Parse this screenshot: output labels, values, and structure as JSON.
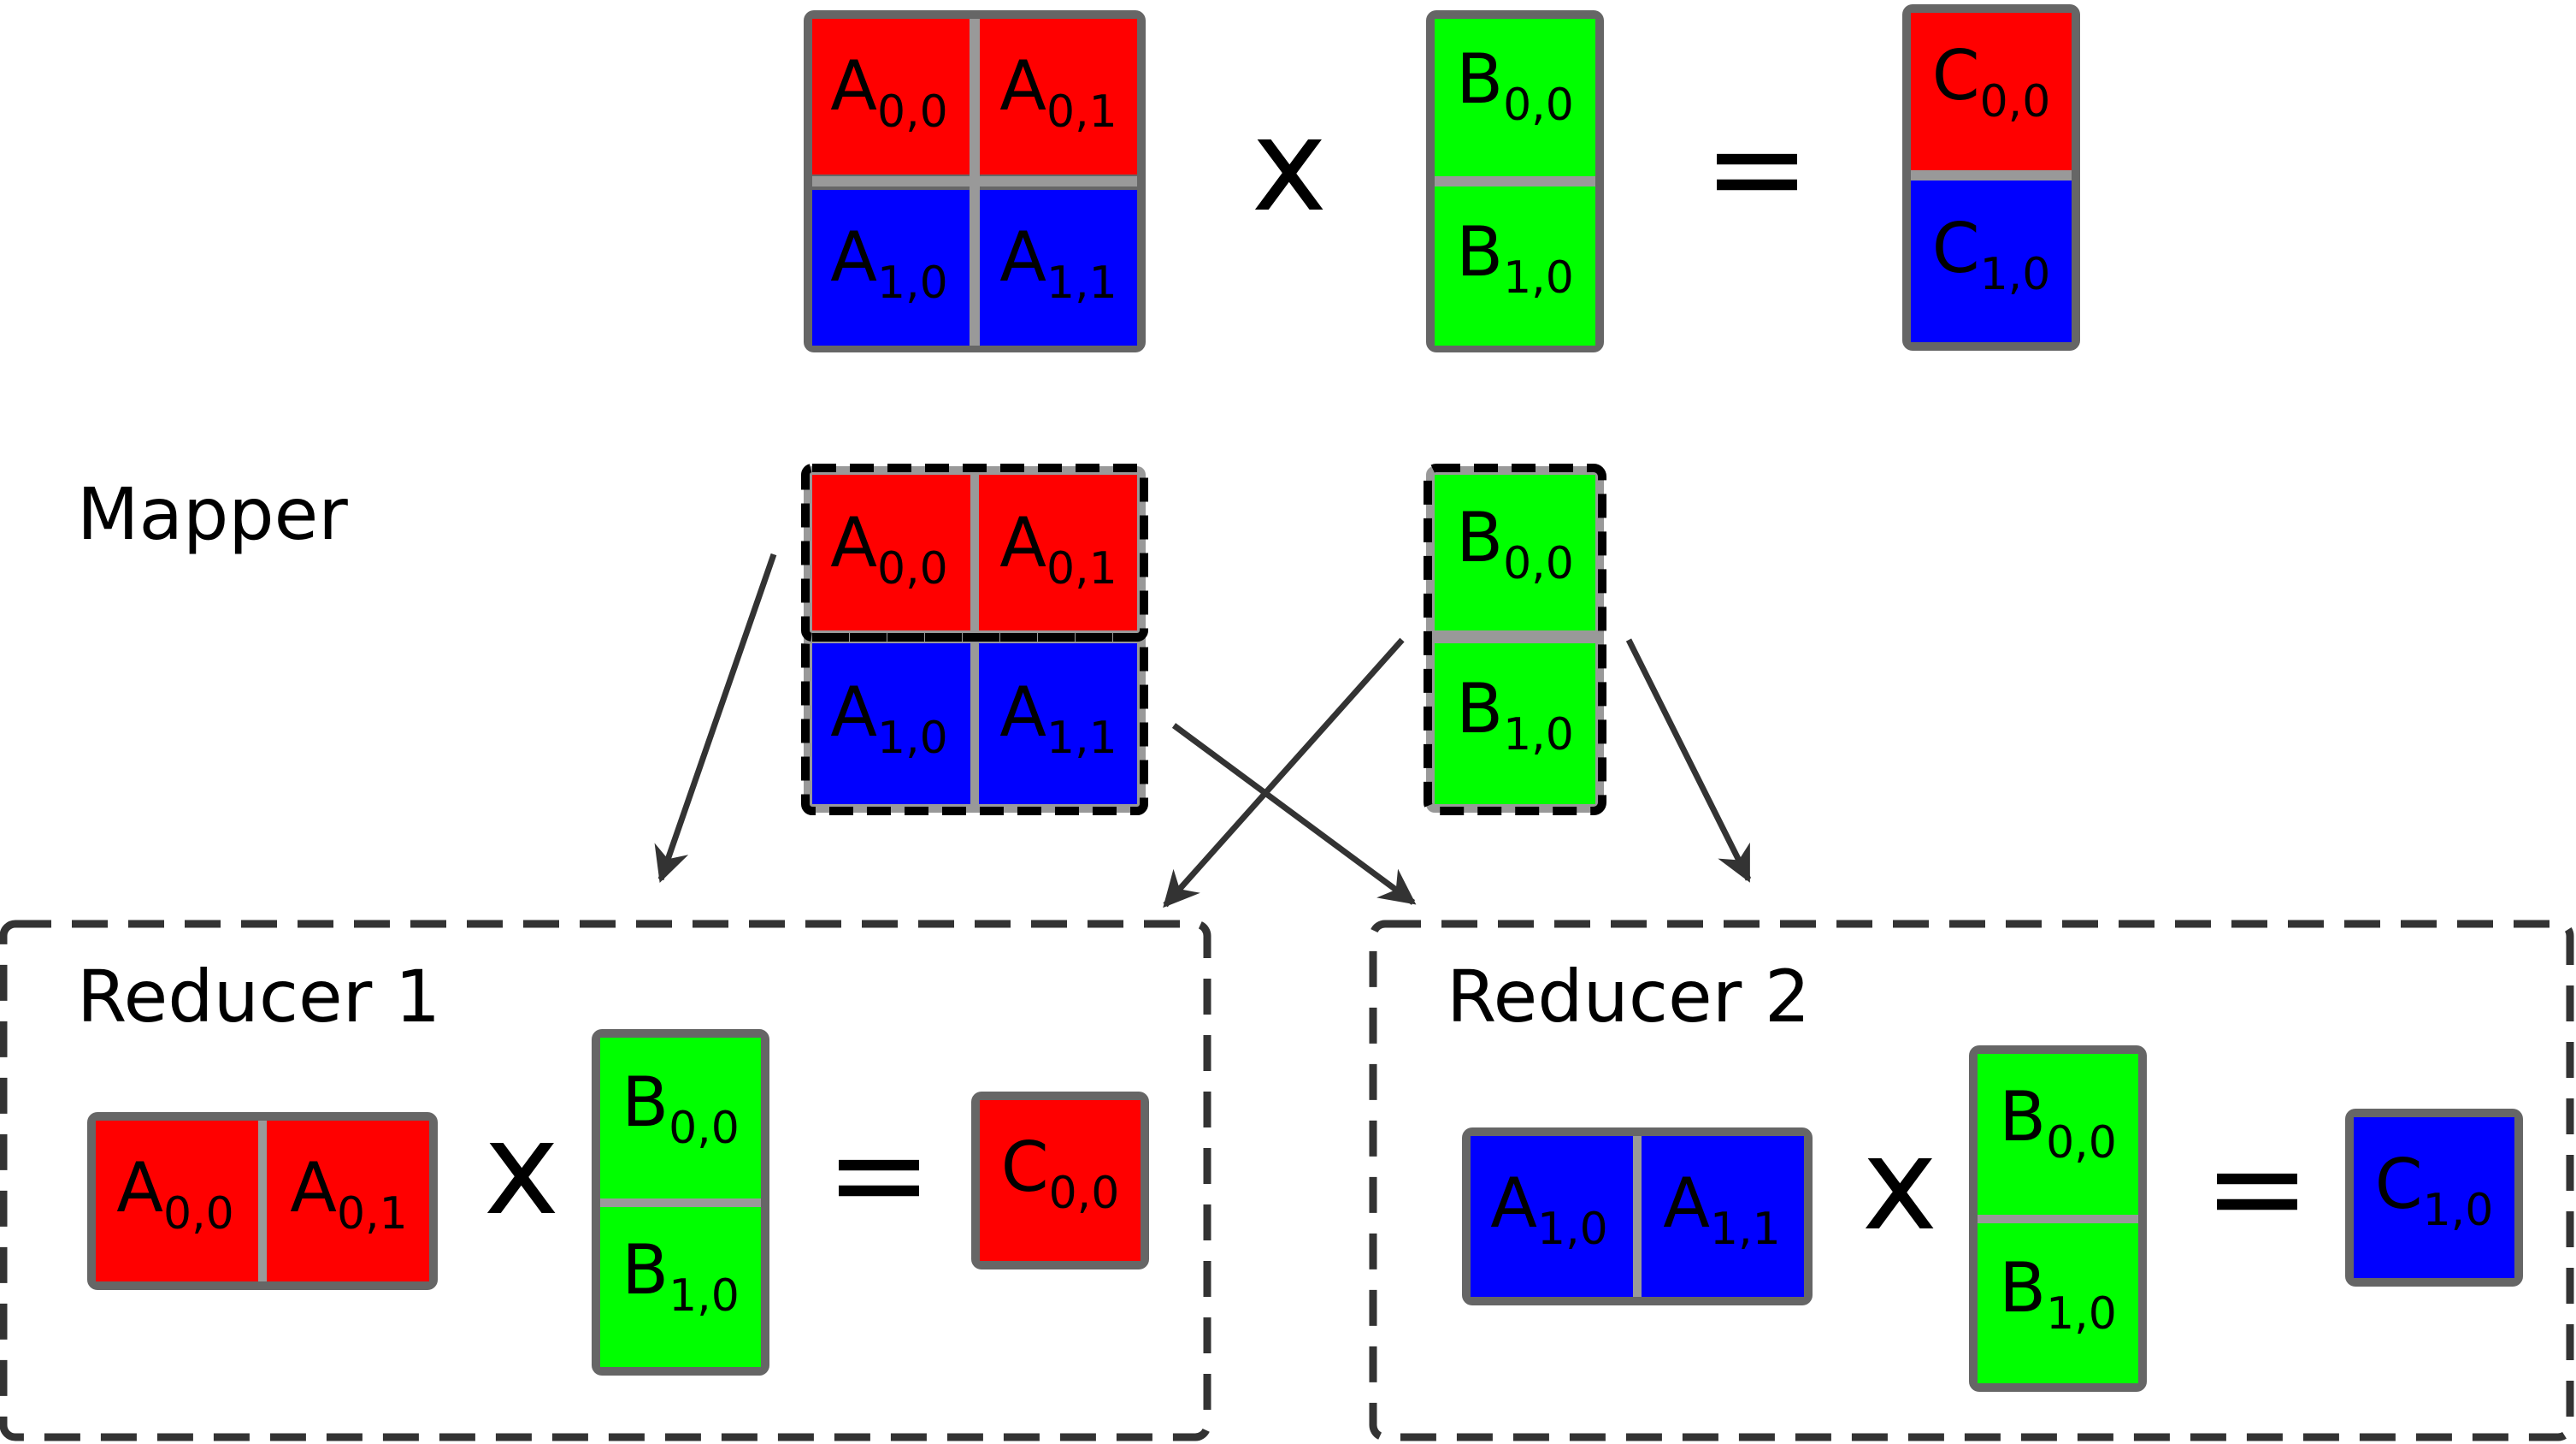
{
  "colors": {
    "a_top": "#ff0000",
    "a_bottom": "#0000ff",
    "b": "#00ff00",
    "frame": "#666666",
    "divider": "#999999",
    "dashed_border": "#000000",
    "reducer_border": "#333333",
    "arrow": "#333333"
  },
  "operators": {
    "times": "x",
    "equals": "="
  },
  "matrix_a": {
    "cells": [
      {
        "base": "A",
        "sub": "0,0"
      },
      {
        "base": "A",
        "sub": "0,1"
      },
      {
        "base": "A",
        "sub": "1,0"
      },
      {
        "base": "A",
        "sub": "1,1"
      }
    ]
  },
  "matrix_b": {
    "cells": [
      {
        "base": "B",
        "sub": "0,0"
      },
      {
        "base": "B",
        "sub": "1,0"
      }
    ]
  },
  "matrix_c": {
    "cells": [
      {
        "base": "C",
        "sub": "0,0"
      },
      {
        "base": "C",
        "sub": "1,0"
      }
    ]
  },
  "mapper": {
    "label": "Mapper"
  },
  "reducers": [
    {
      "label": "Reducer 1",
      "a_cells": [
        {
          "base": "A",
          "sub": "0,0"
        },
        {
          "base": "A",
          "sub": "0,1"
        }
      ],
      "b_cells": [
        {
          "base": "B",
          "sub": "0,0"
        },
        {
          "base": "B",
          "sub": "1,0"
        }
      ],
      "c_cell": {
        "base": "C",
        "sub": "0,0"
      }
    },
    {
      "label": "Reducer 2",
      "a_cells": [
        {
          "base": "A",
          "sub": "1,0"
        },
        {
          "base": "A",
          "sub": "1,1"
        }
      ],
      "b_cells": [
        {
          "base": "B",
          "sub": "0,0"
        },
        {
          "base": "B",
          "sub": "1,0"
        }
      ],
      "c_cell": {
        "base": "C",
        "sub": "1,0"
      }
    }
  ]
}
